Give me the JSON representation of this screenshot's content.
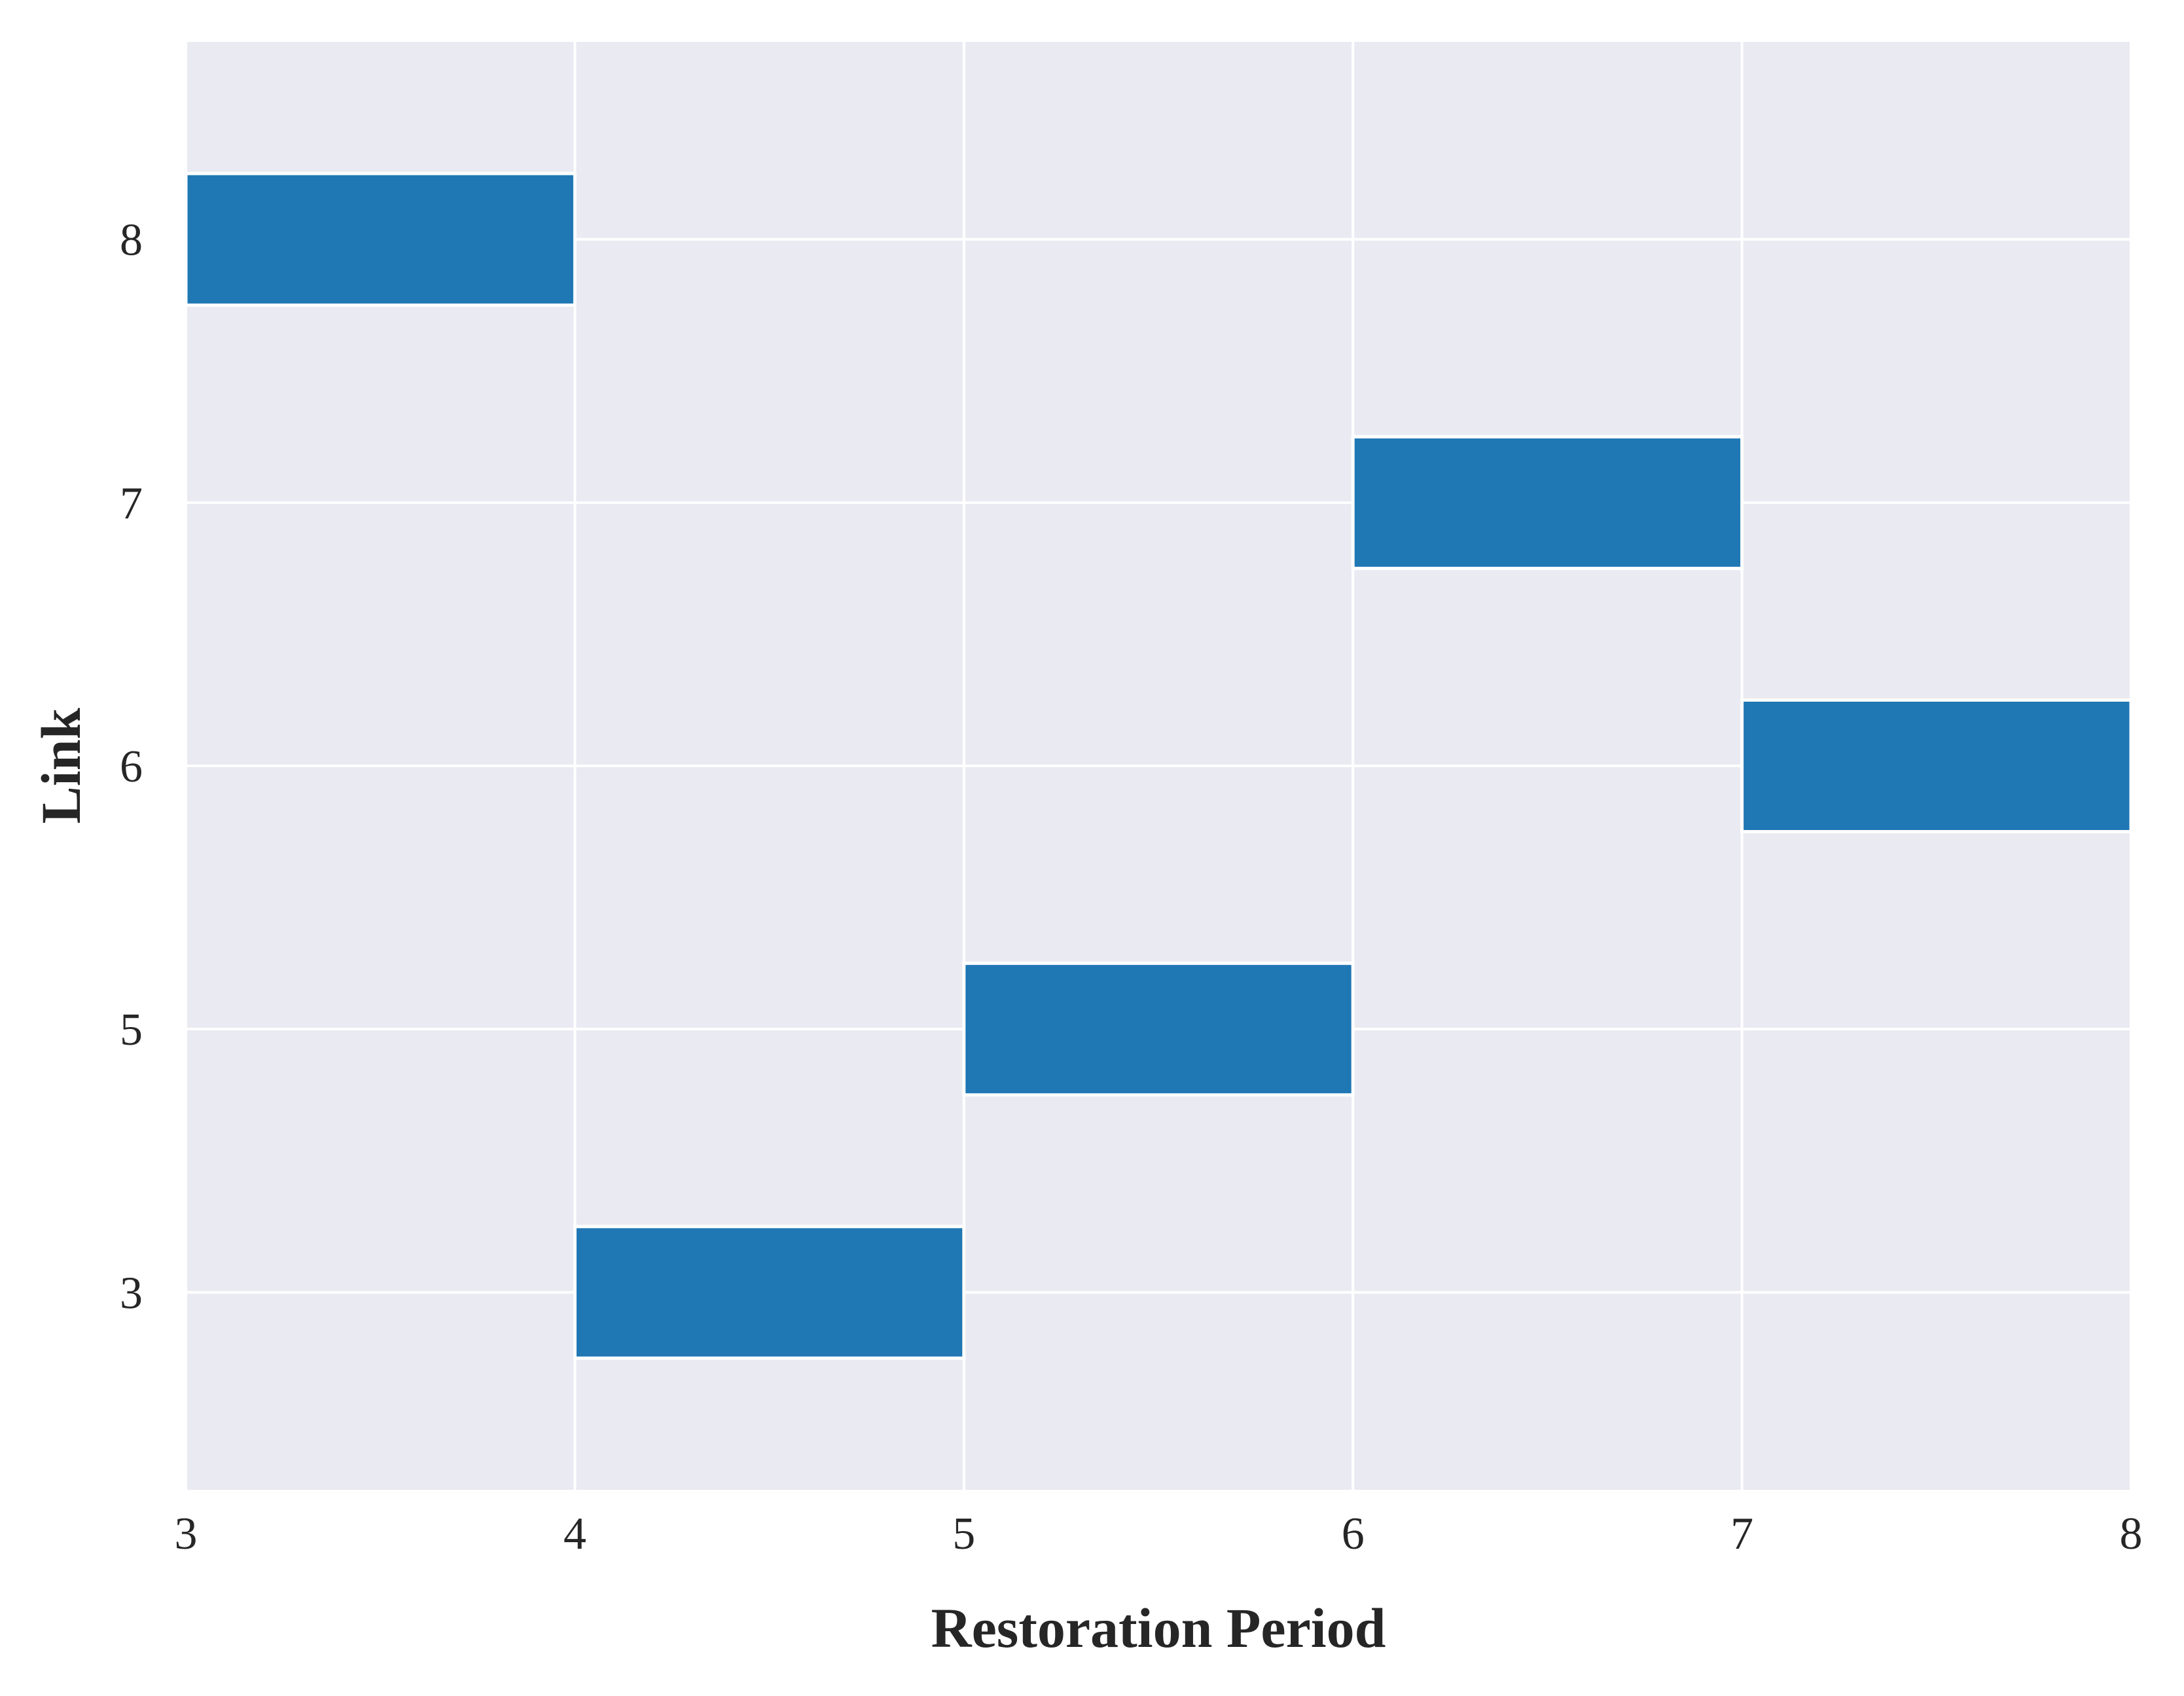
{
  "chart_data": {
    "type": "gantt",
    "xlabel": "Restoration Period",
    "ylabel": "Link",
    "xlim": [
      3,
      8
    ],
    "x_ticks": [
      "3",
      "4",
      "5",
      "6",
      "7",
      "8"
    ],
    "y_categories": [
      "3",
      "5",
      "6",
      "7",
      "8"
    ],
    "bars": [
      {
        "link": "8",
        "start": 3,
        "end": 4
      },
      {
        "link": "3",
        "start": 4,
        "end": 5
      },
      {
        "link": "5",
        "start": 5,
        "end": 6
      },
      {
        "link": "7",
        "start": 6,
        "end": 7
      },
      {
        "link": "6",
        "start": 7,
        "end": 8
      }
    ],
    "grid": true,
    "colors": {
      "bar": "#1f77b4",
      "background": "#eaeaf2",
      "grid": "#ffffff"
    }
  }
}
